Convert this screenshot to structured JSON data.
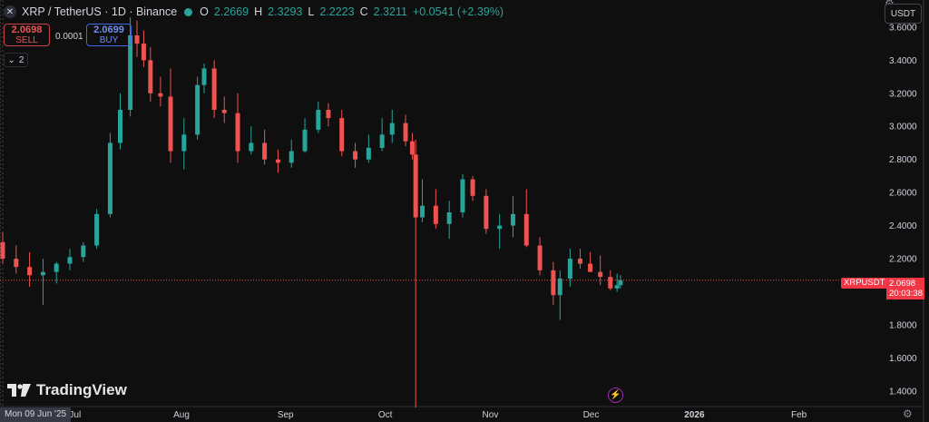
{
  "header": {
    "title": "XRP / TetherUS · 1D · Binance",
    "open_label": "O",
    "open": "2.2669",
    "high_label": "H",
    "high": "2.3293",
    "low_label": "L",
    "low": "2.2223",
    "close_label": "C",
    "close": "2.3211",
    "change": "+0.0541 (+2.39%)"
  },
  "trade": {
    "sell_price": "2.0698",
    "sell_label": "SELL",
    "buy_price": "2.0699",
    "buy_label": "BUY",
    "spread": "0.0001"
  },
  "indicators_collapse": {
    "count": "2"
  },
  "currency": "USDT",
  "price_label": {
    "symbol": "XRPUSDT",
    "price": "2.0698",
    "countdown": "20:03:38"
  },
  "crosshair_date": "Mon 09 Jun '25",
  "brand": "TradingView",
  "colors": {
    "up": "#26a69a",
    "down": "#ef5350",
    "background": "#0f0f0f",
    "text": "#d1d4dc"
  },
  "chart_data": {
    "type": "candlestick",
    "y_ticks": [
      "3.6000",
      "3.4000",
      "3.2000",
      "3.0000",
      "2.8000",
      "2.6000",
      "2.4000",
      "2.2000",
      "2.0000",
      "1.8000",
      "1.6000",
      "1.4000"
    ],
    "ylim": [
      1.35,
      3.72
    ],
    "x_ticks": [
      "Jul",
      "Aug",
      "Sep",
      "Oct",
      "Nov",
      "Dec",
      "2026",
      "Feb"
    ],
    "x_tick_dates": [
      "2025-07-01",
      "2025-08-01",
      "2025-09-01",
      "2025-10-01",
      "2025-11-01",
      "2025-12-01",
      "2026-01-01",
      "2026-02-01"
    ],
    "dates": [
      "2025-06-09",
      "2025-06-13",
      "2025-06-17",
      "2025-06-21",
      "2025-06-25",
      "2025-06-29",
      "2025-07-03",
      "2025-07-07",
      "2025-07-11",
      "2025-07-14",
      "2025-07-17",
      "2025-07-19",
      "2025-07-21",
      "2025-07-23",
      "2025-07-26",
      "2025-07-29",
      "2025-08-02",
      "2025-08-06",
      "2025-08-08",
      "2025-08-11",
      "2025-08-14",
      "2025-08-18",
      "2025-08-22",
      "2025-08-26",
      "2025-08-30",
      "2025-09-03",
      "2025-09-07",
      "2025-09-11",
      "2025-09-14",
      "2025-09-18",
      "2025-09-22",
      "2025-09-26",
      "2025-09-30",
      "2025-10-03",
      "2025-10-07",
      "2025-10-09",
      "2025-10-10",
      "2025-10-12",
      "2025-10-16",
      "2025-10-20",
      "2025-10-24",
      "2025-10-27",
      "2025-10-31",
      "2025-11-04",
      "2025-11-08",
      "2025-11-12",
      "2025-11-16",
      "2025-11-20",
      "2025-11-22",
      "2025-11-25",
      "2025-11-28",
      "2025-12-01",
      "2025-12-04",
      "2025-12-07",
      "2025-12-09",
      "2025-12-10"
    ],
    "open": [
      2.3,
      2.2,
      2.15,
      2.1,
      2.12,
      2.17,
      2.21,
      2.28,
      2.47,
      2.9,
      3.1,
      3.55,
      3.5,
      3.4,
      3.2,
      3.18,
      2.85,
      2.95,
      3.25,
      3.35,
      3.1,
      3.08,
      2.85,
      2.9,
      2.8,
      2.78,
      2.85,
      2.98,
      3.1,
      3.05,
      2.85,
      2.8,
      2.87,
      2.95,
      3.02,
      2.91,
      2.83,
      2.45,
      2.52,
      2.41,
      2.48,
      2.68,
      2.58,
      2.38,
      2.4,
      2.47,
      2.28,
      2.13,
      1.98,
      2.08,
      2.2,
      2.17,
      2.12,
      2.09,
      2.02,
      2.04
    ],
    "high": [
      2.36,
      2.28,
      2.24,
      2.2,
      2.18,
      2.26,
      2.3,
      2.5,
      2.96,
      3.2,
      3.66,
      3.64,
      3.58,
      3.48,
      3.3,
      3.35,
      3.05,
      3.3,
      3.38,
      3.4,
      3.18,
      3.2,
      3.0,
      2.98,
      2.86,
      2.92,
      3.05,
      3.15,
      3.14,
      3.1,
      2.9,
      2.95,
      3.05,
      3.1,
      3.07,
      2.96,
      2.92,
      2.68,
      2.62,
      2.55,
      2.71,
      2.7,
      2.62,
      2.47,
      2.58,
      2.62,
      2.33,
      2.18,
      2.13,
      2.26,
      2.26,
      2.24,
      2.22,
      2.13,
      2.11,
      2.1
    ],
    "low": [
      2.17,
      2.11,
      2.03,
      1.92,
      2.05,
      2.13,
      2.18,
      2.26,
      2.45,
      2.86,
      3.06,
      3.42,
      3.36,
      3.15,
      3.12,
      2.78,
      2.74,
      2.92,
      3.2,
      3.05,
      3.02,
      2.78,
      2.83,
      2.77,
      2.72,
      2.75,
      2.84,
      2.96,
      3.0,
      2.82,
      2.75,
      2.78,
      2.85,
      2.9,
      2.88,
      2.8,
      1.3,
      2.42,
      2.38,
      2.32,
      2.45,
      2.55,
      2.35,
      2.26,
      2.33,
      2.27,
      2.1,
      1.92,
      1.83,
      2.03,
      2.14,
      2.12,
      2.04,
      2.01,
      2.0,
      2.02
    ],
    "close": [
      2.2,
      2.15,
      2.1,
      2.12,
      2.17,
      2.21,
      2.28,
      2.47,
      2.9,
      3.1,
      3.55,
      3.5,
      3.4,
      3.2,
      3.18,
      2.85,
      2.95,
      3.25,
      3.35,
      3.1,
      3.08,
      2.85,
      2.9,
      2.8,
      2.78,
      2.85,
      2.98,
      3.1,
      3.05,
      2.85,
      2.8,
      2.87,
      2.95,
      3.02,
      2.91,
      2.83,
      2.45,
      2.52,
      2.41,
      2.48,
      2.68,
      2.58,
      2.38,
      2.4,
      2.47,
      2.28,
      2.13,
      1.98,
      2.08,
      2.2,
      2.17,
      2.12,
      2.09,
      2.02,
      2.04,
      2.07
    ],
    "last_price": 2.0698
  }
}
